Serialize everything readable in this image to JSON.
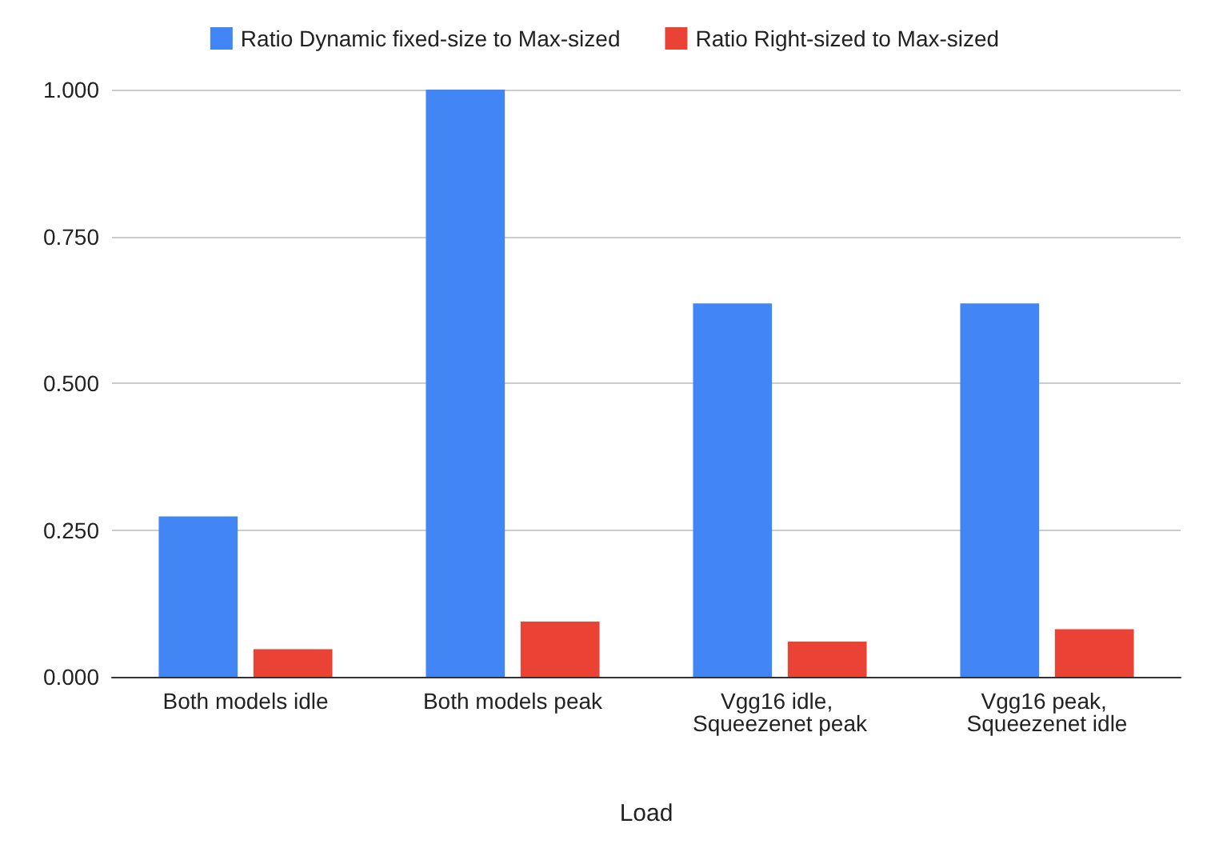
{
  "chart_data": {
    "type": "bar",
    "xlabel": "Load",
    "categories": [
      "Both models idle",
      "Both models peak",
      "Vgg16 idle, Squeezenet peak",
      "Vgg16 peak, Squeezenet idle"
    ],
    "series": [
      {
        "name": "Ratio Dynamic fixed-size to Max-sized",
        "color": "#4285f4",
        "values": [
          0.273,
          1.0,
          0.636,
          0.636
        ]
      },
      {
        "name": "Ratio Right-sized to Max-sized",
        "color": "#ea4335",
        "values": [
          0.047,
          0.094,
          0.06,
          0.081
        ]
      }
    ],
    "ylim": [
      0,
      1
    ],
    "yticks": [
      {
        "value": 0,
        "label": "0.000"
      },
      {
        "value": 0.25,
        "label": "0.250"
      },
      {
        "value": 0.5,
        "label": "0.500"
      },
      {
        "value": 0.75,
        "label": "0.750"
      },
      {
        "value": 1,
        "label": "1.000"
      }
    ],
    "grid": "y",
    "legend": "top"
  }
}
